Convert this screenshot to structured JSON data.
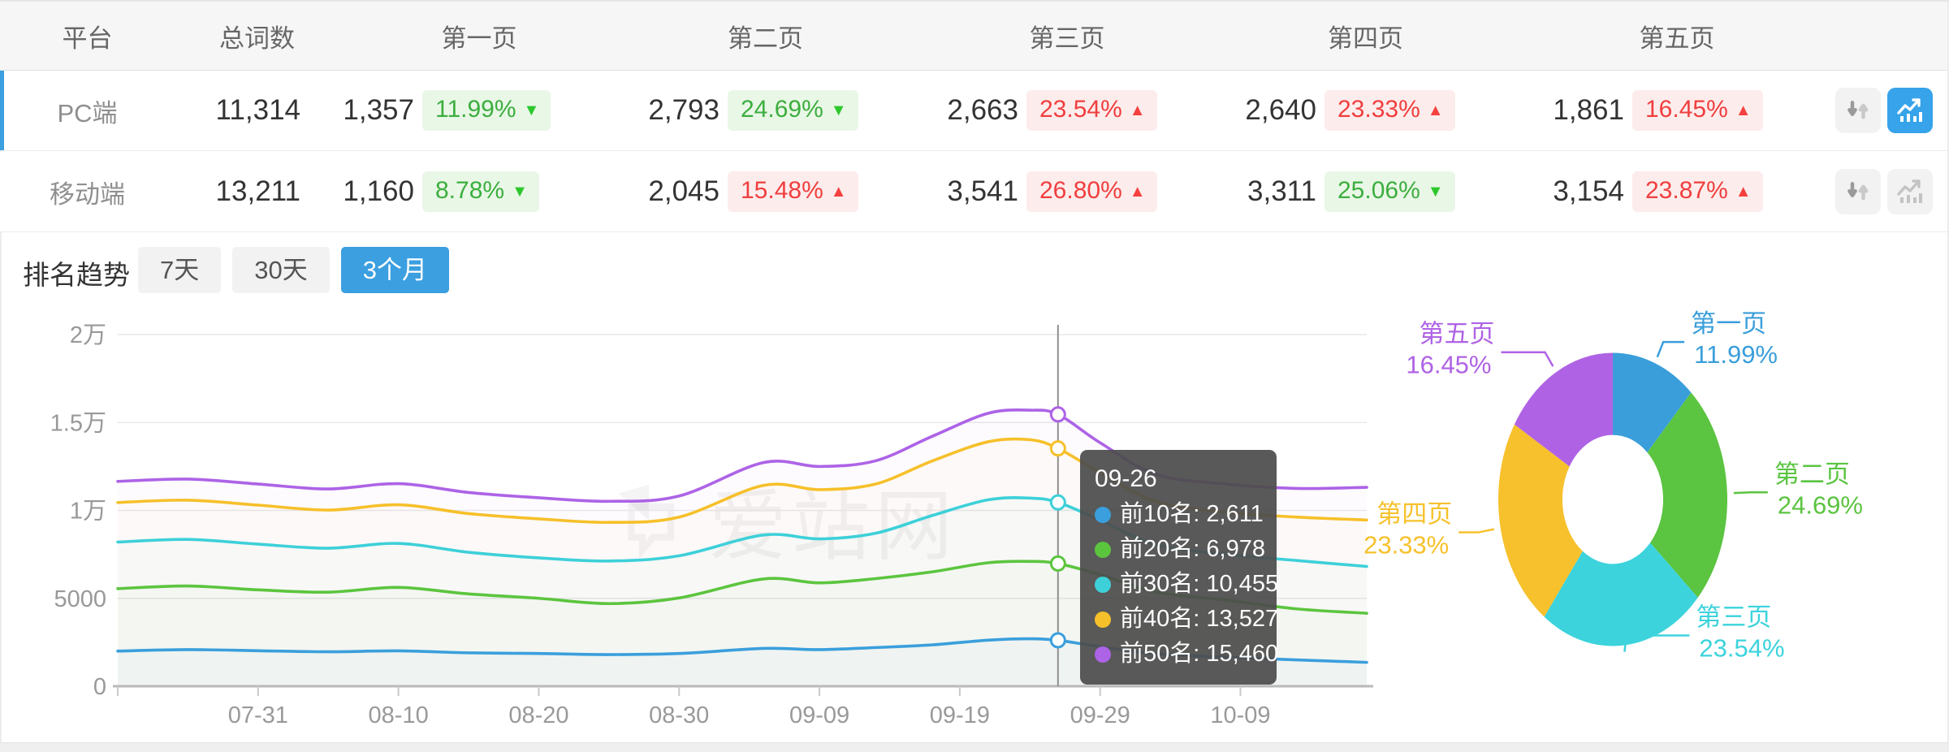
{
  "table": {
    "headers": {
      "platform": "平台",
      "total": "总词数",
      "pages": [
        "第一页",
        "第二页",
        "第三页",
        "第四页",
        "第五页"
      ]
    },
    "rows": [
      {
        "platform": "PC端",
        "total": "11,314",
        "selected": "true",
        "trend_active": "true",
        "sort_active": "false",
        "pages": [
          {
            "count": "1,357",
            "pct": "11.99%",
            "arrow": "▼",
            "color": "green"
          },
          {
            "count": "2,793",
            "pct": "24.69%",
            "arrow": "▼",
            "color": "green"
          },
          {
            "count": "2,663",
            "pct": "23.54%",
            "arrow": "▲",
            "color": "red"
          },
          {
            "count": "2,640",
            "pct": "23.33%",
            "arrow": "▲",
            "color": "red"
          },
          {
            "count": "1,861",
            "pct": "16.45%",
            "arrow": "▲",
            "color": "red"
          }
        ]
      },
      {
        "platform": "移动端",
        "total": "13,211",
        "selected": "false",
        "trend_active": "false",
        "sort_active": "false",
        "pages": [
          {
            "count": "1,160",
            "pct": "8.78%",
            "arrow": "▼",
            "color": "green"
          },
          {
            "count": "2,045",
            "pct": "15.48%",
            "arrow": "▲",
            "color": "red"
          },
          {
            "count": "3,541",
            "pct": "26.80%",
            "arrow": "▲",
            "color": "red"
          },
          {
            "count": "3,311",
            "pct": "25.06%",
            "arrow": "▼",
            "color": "green"
          },
          {
            "count": "3,154",
            "pct": "23.87%",
            "arrow": "▲",
            "color": "red"
          }
        ]
      }
    ]
  },
  "trend": {
    "section_title": "排名趋势",
    "tabs": [
      {
        "label": "7天",
        "active": "false"
      },
      {
        "label": "30天",
        "active": "false"
      },
      {
        "label": "3个月",
        "active": "true"
      }
    ]
  },
  "watermark": "爱站网",
  "chart_data": [
    {
      "type": "line",
      "title": "排名趋势（3个月）",
      "ylim": [
        0,
        20000
      ],
      "grid": true,
      "legend": "none",
      "y_ticks": [
        {
          "label": "0",
          "value": 0
        },
        {
          "label": "5000",
          "value": 5000
        },
        {
          "label": "1万",
          "value": 10000
        },
        {
          "label": "1.5万",
          "value": 15000
        },
        {
          "label": "2万",
          "value": 20000
        }
      ],
      "x_ticks": [
        {
          "label": "07-31",
          "day": 10
        },
        {
          "label": "08-10",
          "day": 20
        },
        {
          "label": "08-20",
          "day": 30
        },
        {
          "label": "08-30",
          "day": 40
        },
        {
          "label": "09-09",
          "day": 50
        },
        {
          "label": "09-19",
          "day": 60
        },
        {
          "label": "09-29",
          "day": 70
        },
        {
          "label": "10-09",
          "day": 80
        }
      ],
      "x_range_days": [
        0,
        89
      ],
      "crosshair_day": 67,
      "tooltip": {
        "date": "09-26",
        "items": [
          {
            "label": "前10名",
            "value": "2,611"
          },
          {
            "label": "前20名",
            "value": "6,978"
          },
          {
            "label": "前30名",
            "value": "10,455"
          },
          {
            "label": "前40名",
            "value": "13,527"
          },
          {
            "label": "前50名",
            "value": "15,460"
          }
        ]
      },
      "series": [
        {
          "name": "前10名",
          "color": "#3a9fdc",
          "points": [
            [
              0,
              2000
            ],
            [
              5,
              2080
            ],
            [
              10,
              2020
            ],
            [
              15,
              1960
            ],
            [
              20,
              2010
            ],
            [
              25,
              1900
            ],
            [
              30,
              1860
            ],
            [
              35,
              1800
            ],
            [
              40,
              1860
            ],
            [
              46,
              2150
            ],
            [
              50,
              2080
            ],
            [
              54,
              2200
            ],
            [
              58,
              2350
            ],
            [
              62,
              2620
            ],
            [
              65,
              2700
            ],
            [
              67,
              2611
            ],
            [
              70,
              2250
            ],
            [
              74,
              1850
            ],
            [
              79,
              1650
            ],
            [
              84,
              1500
            ],
            [
              89,
              1357
            ]
          ]
        },
        {
          "name": "前20名",
          "color": "#5cc53e",
          "points": [
            [
              0,
              5550
            ],
            [
              5,
              5700
            ],
            [
              10,
              5480
            ],
            [
              15,
              5350
            ],
            [
              20,
              5620
            ],
            [
              25,
              5250
            ],
            [
              30,
              5000
            ],
            [
              35,
              4700
            ],
            [
              40,
              5020
            ],
            [
              46,
              6100
            ],
            [
              50,
              5880
            ],
            [
              54,
              6120
            ],
            [
              58,
              6500
            ],
            [
              62,
              7020
            ],
            [
              65,
              7100
            ],
            [
              67,
              6978
            ],
            [
              70,
              6350
            ],
            [
              74,
              5350
            ],
            [
              79,
              4900
            ],
            [
              84,
              4400
            ],
            [
              89,
              4150
            ]
          ]
        },
        {
          "name": "前30名",
          "color": "#3dd0d9",
          "points": [
            [
              0,
              8200
            ],
            [
              5,
              8350
            ],
            [
              10,
              8080
            ],
            [
              15,
              7850
            ],
            [
              20,
              8120
            ],
            [
              25,
              7620
            ],
            [
              30,
              7300
            ],
            [
              35,
              7120
            ],
            [
              40,
              7420
            ],
            [
              46,
              8600
            ],
            [
              50,
              8380
            ],
            [
              54,
              8700
            ],
            [
              58,
              9700
            ],
            [
              62,
              10600
            ],
            [
              65,
              10700
            ],
            [
              67,
              10455
            ],
            [
              70,
              9450
            ],
            [
              74,
              8050
            ],
            [
              79,
              7500
            ],
            [
              84,
              7150
            ],
            [
              89,
              6813
            ]
          ]
        },
        {
          "name": "前40名",
          "color": "#f6c02a",
          "points": [
            [
              0,
              10450
            ],
            [
              5,
              10580
            ],
            [
              10,
              10300
            ],
            [
              15,
              10020
            ],
            [
              20,
              10320
            ],
            [
              25,
              9820
            ],
            [
              30,
              9520
            ],
            [
              35,
              9320
            ],
            [
              40,
              9620
            ],
            [
              46,
              11420
            ],
            [
              50,
              11180
            ],
            [
              54,
              11500
            ],
            [
              58,
              12800
            ],
            [
              62,
              13900
            ],
            [
              65,
              14020
            ],
            [
              67,
              13527
            ],
            [
              70,
              12150
            ],
            [
              74,
              10500
            ],
            [
              79,
              9900
            ],
            [
              84,
              9620
            ],
            [
              89,
              9453
            ]
          ]
        },
        {
          "name": "前50名",
          "color": "#ad63e6",
          "points": [
            [
              0,
              11650
            ],
            [
              5,
              11780
            ],
            [
              10,
              11500
            ],
            [
              15,
              11220
            ],
            [
              20,
              11520
            ],
            [
              25,
              11020
            ],
            [
              30,
              10720
            ],
            [
              35,
              10520
            ],
            [
              40,
              10820
            ],
            [
              46,
              12720
            ],
            [
              50,
              12500
            ],
            [
              54,
              12820
            ],
            [
              58,
              14200
            ],
            [
              62,
              15520
            ],
            [
              65,
              15700
            ],
            [
              67,
              15460
            ],
            [
              70,
              13850
            ],
            [
              74,
              12050
            ],
            [
              79,
              11500
            ],
            [
              84,
              11250
            ],
            [
              89,
              11314
            ]
          ]
        }
      ]
    },
    {
      "type": "pie",
      "inner_radius_ratio": 0.44,
      "slices": [
        {
          "label": "第一页",
          "value": 11.99,
          "display": "11.99%",
          "color": "#3a9edb"
        },
        {
          "label": "第二页",
          "value": 24.69,
          "display": "24.69%",
          "color": "#5bc441"
        },
        {
          "label": "第三页",
          "value": 23.54,
          "display": "23.54%",
          "color": "#3cd3dc"
        },
        {
          "label": "第四页",
          "value": 23.33,
          "display": "23.33%",
          "color": "#f7c12d"
        },
        {
          "label": "第五页",
          "value": 16.45,
          "display": "16.45%",
          "color": "#af63e4"
        }
      ]
    }
  ]
}
